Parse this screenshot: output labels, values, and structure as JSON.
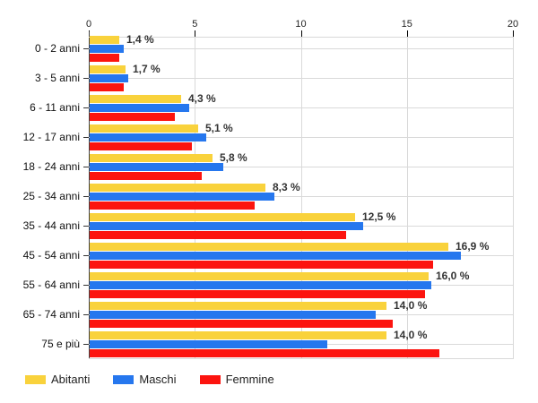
{
  "chart_data": {
    "type": "bar",
    "orientation": "horizontal",
    "title": "",
    "categories": [
      "0 - 2 anni",
      "3 - 5 anni",
      "6 - 11 anni",
      "12 - 17 anni",
      "18 - 24 anni",
      "25 - 34 anni",
      "35 - 44 anni",
      "45 - 54 anni",
      "55 - 64 anni",
      "65 - 74 anni",
      "75 e più"
    ],
    "series": [
      {
        "name": "Abitanti",
        "color": "#F9D23C",
        "values": [
          1.4,
          1.7,
          4.3,
          5.1,
          5.8,
          8.3,
          12.5,
          16.9,
          16.0,
          14.0,
          14.0
        ]
      },
      {
        "name": "Maschi",
        "color": "#2677EE",
        "values": [
          1.6,
          1.8,
          4.7,
          5.5,
          6.3,
          8.7,
          12.9,
          17.5,
          16.1,
          13.5,
          11.2
        ]
      },
      {
        "name": "Femmine",
        "color": "#FC140F",
        "values": [
          1.4,
          1.6,
          4.0,
          4.8,
          5.3,
          7.8,
          12.1,
          16.2,
          15.8,
          14.3,
          16.5
        ]
      }
    ],
    "value_labels": [
      "1,4 %",
      "1,7 %",
      "4,3 %",
      "5,1 %",
      "5,8 %",
      "8,3 %",
      "12,5 %",
      "16,9 %",
      "16,0 %",
      "14,0 %",
      "14,0 %"
    ],
    "value_labels_series": "Abitanti",
    "x_ticks": [
      0,
      5,
      10,
      15,
      20
    ],
    "x_tick_labels": [
      "0",
      "5",
      "10",
      "15",
      "20"
    ],
    "xlim": [
      0,
      20
    ],
    "xlabel": "",
    "ylabel": "",
    "grid": true,
    "legend_position": "bottom-left",
    "colors": {
      "abitanti": "#F9D23C",
      "maschi": "#2677EE",
      "femmine": "#FC140F",
      "gridline": "#d9d9d9",
      "axis": "#444444",
      "text": "#222222",
      "value_label": "#333333"
    }
  }
}
